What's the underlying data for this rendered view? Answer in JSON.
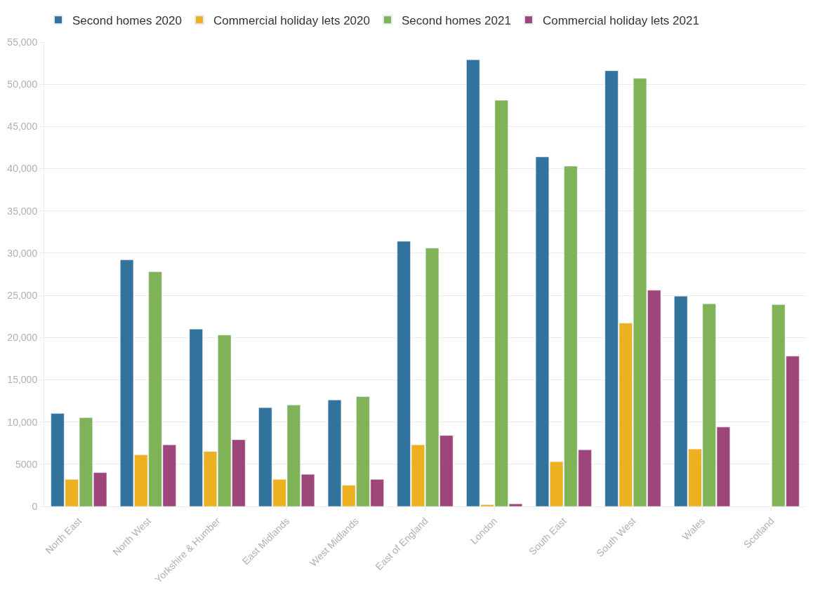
{
  "chart_data": {
    "type": "bar",
    "categories": [
      "North East",
      "North West",
      "Yorkshire & Humber",
      "East Midlands",
      "West Midlands",
      "East of England",
      "London",
      "South East",
      "South West",
      "Wales",
      "Scotland"
    ],
    "series": [
      {
        "name": "Second homes 2020",
        "color": "#32739e",
        "values": [
          11000,
          29200,
          21000,
          11700,
          12600,
          31400,
          52900,
          41400,
          51600,
          24900,
          null
        ]
      },
      {
        "name": "Commercial holiday lets 2020",
        "color": "#ecb021",
        "values": [
          3200,
          6100,
          6500,
          3200,
          2500,
          7300,
          200,
          5300,
          21700,
          6800,
          null
        ]
      },
      {
        "name": "Second homes 2021",
        "color": "#80b357",
        "values": [
          10500,
          27800,
          20300,
          12000,
          13000,
          30600,
          48100,
          40300,
          50700,
          24000,
          23900
        ]
      },
      {
        "name": "Commercial holiday lets 2021",
        "color": "#9e4679",
        "values": [
          4000,
          7300,
          7900,
          3800,
          3200,
          8400,
          300,
          6700,
          25600,
          9400,
          17800
        ]
      }
    ],
    "ylim": [
      0,
      55000
    ],
    "yticks": [
      {
        "value": 0,
        "label": "0"
      },
      {
        "value": 5000,
        "label": "5000"
      },
      {
        "value": 10000,
        "label": "10,000"
      },
      {
        "value": 15000,
        "label": "15,000"
      },
      {
        "value": 20000,
        "label": "20,000"
      },
      {
        "value": 25000,
        "label": "25,000"
      },
      {
        "value": 30000,
        "label": "30,000"
      },
      {
        "value": 35000,
        "label": "35,000"
      },
      {
        "value": 40000,
        "label": "40,000"
      },
      {
        "value": 45000,
        "label": "45,000"
      },
      {
        "value": 50000,
        "label": "50,000"
      },
      {
        "value": 55000,
        "label": "55,000"
      }
    ],
    "grid": "y",
    "legend": "top left"
  }
}
